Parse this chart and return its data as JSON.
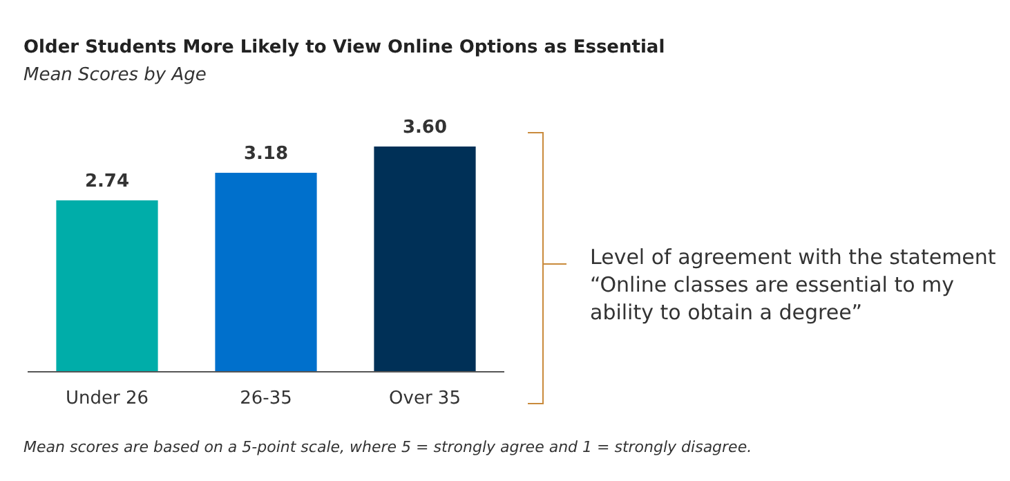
{
  "chart_data": {
    "type": "bar",
    "title": "Older Students More Likely to View Online Options as Essential",
    "subtitle": "Mean Scores by Age",
    "categories": [
      "Under 26",
      "26-35",
      "Over 35"
    ],
    "values": [
      2.74,
      3.18,
      3.6
    ],
    "value_labels": [
      "2.74",
      "3.18",
      "3.60"
    ],
    "colors": [
      "#00ada9",
      "#0070cc",
      "#003057"
    ],
    "annotations": [
      "Level of agreement with the statement “Online classes are essential to my ability to obtain a degree”",
      "Mean scores are based on a 5-point scale, where 5 = strongly agree and 1 = strongly disagree."
    ]
  }
}
